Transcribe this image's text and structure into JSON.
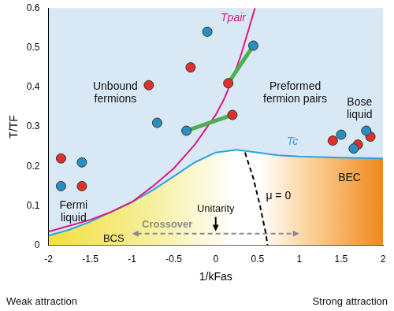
{
  "chart_data": {
    "type": "scatter",
    "x_label": "1/kFas",
    "y_label": "T/TF",
    "xlim": [
      -2,
      2
    ],
    "xticks": [
      -2,
      -1.5,
      -1,
      -0.5,
      0,
      0.5,
      1,
      1.5,
      2
    ],
    "ylim": [
      0,
      0.6
    ],
    "yticks": [
      0,
      0.1,
      0.2,
      0.3,
      0.4,
      0.5,
      0.6
    ],
    "grid": false,
    "series": [
      {
        "name": "Tc",
        "type": "line",
        "color": "#2aa3e0",
        "x": [
          -2,
          -1.75,
          -1.5,
          -1.25,
          -1,
          -0.75,
          -0.5,
          -0.25,
          0,
          0.25,
          0.5,
          0.75,
          1,
          1.5,
          2
        ],
        "values": [
          0.025,
          0.04,
          0.06,
          0.085,
          0.11,
          0.14,
          0.175,
          0.21,
          0.235,
          0.242,
          0.235,
          0.228,
          0.225,
          0.222,
          0.22
        ]
      },
      {
        "name": "Tpair",
        "type": "line",
        "color": "#e0197d",
        "x": [
          -2,
          -1.75,
          -1.5,
          -1.25,
          -1,
          -0.75,
          -0.5,
          -0.25,
          0,
          0.1,
          0.2,
          0.3,
          0.4,
          0.47
        ],
        "values": [
          0.035,
          0.05,
          0.065,
          0.085,
          0.11,
          0.15,
          0.195,
          0.255,
          0.33,
          0.37,
          0.42,
          0.48,
          0.55,
          0.6
        ]
      },
      {
        "name": "μ = 0",
        "type": "line",
        "color": "#000000",
        "line_style": "dashed",
        "x": [
          0.35,
          0.45,
          0.53,
          0.6,
          0.62
        ],
        "values": [
          0.235,
          0.17,
          0.1,
          0.03,
          0
        ]
      },
      {
        "type": "line",
        "color": "#4caf50",
        "x": [
          0.15,
          0.45
        ],
        "values": [
          0.41,
          0.505
        ]
      },
      {
        "type": "line",
        "color": "#4caf50",
        "x": [
          -0.35,
          0.2
        ],
        "values": [
          0.29,
          0.33
        ]
      },
      {
        "type": "scatter",
        "color": "#e0302a",
        "marker": "circle",
        "x": [
          -1.85,
          -1.6,
          -0.8,
          -0.3,
          0.15,
          0.2,
          1.4,
          1.7,
          1.85
        ],
        "values": [
          0.22,
          0.15,
          0.405,
          0.45,
          0.41,
          0.33,
          0.265,
          0.255,
          0.275
        ]
      },
      {
        "type": "scatter",
        "color": "#2a8fc0",
        "marker": "circle",
        "x": [
          -1.85,
          -1.6,
          -0.7,
          -0.1,
          0.45,
          -0.35,
          1.5,
          1.65,
          1.8
        ],
        "values": [
          0.15,
          0.21,
          0.31,
          0.54,
          0.505,
          0.29,
          0.28,
          0.245,
          0.29
        ]
      }
    ],
    "annotations": [
      "Unbound fermions",
      "Preformed fermion pairs",
      "Bose liquid",
      "Fermi liquid",
      "BCS",
      "BEC",
      "Unitarity",
      "Crossover",
      "Weak attraction",
      "Strong attraction"
    ]
  }
}
